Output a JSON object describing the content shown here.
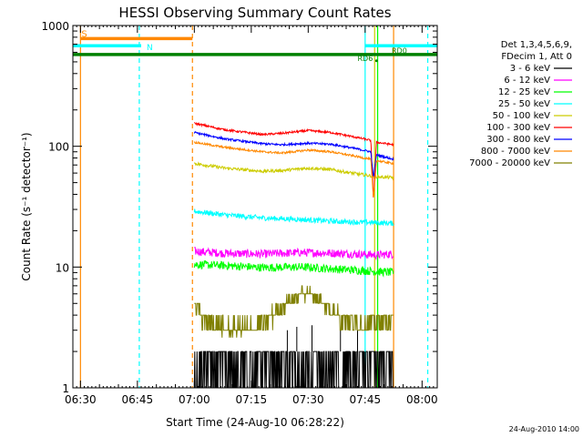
{
  "chart_data": {
    "type": "line",
    "title": "HESSI Observing Summary Count Rates",
    "xlabel": "Start Time (24-Aug-10 06:28:22)",
    "ylabel": "Count Rate (s⁻¹ detector⁻¹)",
    "x_unit": "minutes after 06:28:22 UT",
    "xlim": [
      0,
      96
    ],
    "ylim": [
      1,
      1000
    ],
    "yscale": "log",
    "x_ticks": [
      {
        "value": 2,
        "label": "06:30"
      },
      {
        "value": 17,
        "label": "06:45"
      },
      {
        "value": 32,
        "label": "07:00"
      },
      {
        "value": 47,
        "label": "07:15"
      },
      {
        "value": 62,
        "label": "07:30"
      },
      {
        "value": 77,
        "label": "07:45"
      },
      {
        "value": 92,
        "label": "08:00"
      }
    ],
    "y_ticks": [
      {
        "value": 1,
        "label": "1"
      },
      {
        "value": 10,
        "label": "10"
      },
      {
        "value": 100,
        "label": "100"
      },
      {
        "value": 1000,
        "label": "1000"
      }
    ],
    "legend": {
      "position": "right",
      "header": [
        "Det 1,3,4,5,6,9,",
        "FDecim 1, Att 0"
      ]
    },
    "series": [
      {
        "name": "3 - 6 keV",
        "color": "#000000",
        "noise": 0.35,
        "min": 1,
        "max": 2.0,
        "x": [
          32,
          35,
          40,
          45,
          50,
          55,
          60,
          65,
          70,
          75,
          80,
          84.5
        ],
        "y": [
          1.4,
          1.3,
          1.3,
          1.3,
          1.3,
          1.4,
          1.6,
          1.6,
          1.5,
          1.4,
          1.4,
          1.4
        ],
        "spikes": [
          {
            "x": 56.5,
            "y": 3.0
          },
          {
            "x": 59,
            "y": 3.2
          },
          {
            "x": 63,
            "y": 3.3
          },
          {
            "x": 70.5,
            "y": 3.0
          },
          {
            "x": 75,
            "y": 3.0
          }
        ]
      },
      {
        "name": "6 - 12 keV",
        "color": "#ff00ff",
        "noise": 0.08,
        "x": [
          32,
          40,
          50,
          60,
          70,
          80,
          84.5
        ],
        "y": [
          13.5,
          13,
          12.8,
          13.2,
          13,
          12.6,
          12.8
        ]
      },
      {
        "name": "12 - 25 keV",
        "color": "#00ff00",
        "noise": 0.08,
        "x": [
          32,
          40,
          50,
          60,
          70,
          75,
          80,
          84.5
        ],
        "y": [
          10.5,
          10.3,
          9.9,
          10,
          9.6,
          9.4,
          9.2,
          9.0
        ]
      },
      {
        "name": "25 - 50 keV",
        "color": "#00ffff",
        "noise": 0.05,
        "x": [
          32,
          40,
          50,
          60,
          70,
          80,
          84.5
        ],
        "y": [
          29,
          27,
          25.5,
          24.8,
          23.8,
          23.3,
          23.0
        ]
      },
      {
        "name": "50 - 100 keV",
        "color": "#cccc00",
        "noise": 0.03,
        "x": [
          32,
          40,
          50,
          55,
          62,
          68,
          75,
          80,
          84.5
        ],
        "y": [
          72,
          66,
          62,
          63,
          66,
          64,
          59,
          56,
          55
        ]
      },
      {
        "name": "100 - 300 keV",
        "color": "#ff0000",
        "noise": 0.02,
        "x": [
          32,
          40,
          50,
          55,
          62,
          68,
          75,
          78.5,
          79.2,
          80,
          84.5
        ],
        "y": [
          155,
          137,
          125,
          128,
          135,
          130,
          118,
          112,
          36,
          108,
          103
        ]
      },
      {
        "name": "300 - 800 keV",
        "color": "#0000ff",
        "noise": 0.02,
        "x": [
          32,
          40,
          50,
          55,
          62,
          68,
          75,
          78.5,
          79.2,
          80,
          84.5
        ],
        "y": [
          130,
          115,
          105,
          103,
          106,
          104,
          95,
          90,
          55,
          85,
          78
        ]
      },
      {
        "name": "800 - 7000 keV",
        "color": "#ff8800",
        "noise": 0.02,
        "x": [
          32,
          40,
          50,
          55,
          62,
          68,
          75,
          78.5,
          79.2,
          80,
          84.5
        ],
        "y": [
          108,
          98,
          90,
          88,
          93,
          90,
          82,
          78,
          36,
          76,
          72
        ]
      },
      {
        "name": "7000 - 20000 keV",
        "color": "#808000",
        "noise": 0.05,
        "x": [
          32,
          33,
          35,
          40,
          45,
          50,
          55,
          60,
          62,
          65,
          70,
          75,
          77,
          80,
          84.5
        ],
        "y": [
          5.0,
          4.4,
          3.6,
          3.0,
          3.0,
          3.4,
          4.6,
          6.0,
          6.2,
          5.4,
          4.0,
          3.4,
          3.2,
          3.6,
          3.6
        ]
      }
    ],
    "annotations": [
      {
        "kind": "bar",
        "label": "S",
        "color": "#ff8800",
        "x0": 2,
        "x1": 31.5,
        "y": 780,
        "label_at": "start"
      },
      {
        "kind": "bar",
        "label": "N",
        "color": "#00ffff",
        "x0": 0,
        "x1": 18,
        "y": 680,
        "label_at": "end"
      },
      {
        "kind": "bar",
        "label": "N",
        "color": "#00ffff",
        "x0": 77,
        "x1": 96,
        "y": 680,
        "label_at": "none"
      },
      {
        "kind": "bar",
        "label": "",
        "color": "#008000",
        "x0": 0,
        "x1": 96,
        "y": 575,
        "label_at": "none"
      },
      {
        "kind": "text",
        "label": "RD0",
        "color": "#008000",
        "x": 84,
        "y": 590
      },
      {
        "kind": "text",
        "label": "RD6",
        "color": "#008000",
        "x": 75,
        "y": 510
      },
      {
        "kind": "dot",
        "label": "",
        "color": "#008000",
        "x": 80,
        "y": 510
      }
    ],
    "vlines": [
      {
        "x": 2,
        "color": "#ff8800",
        "style": "solid"
      },
      {
        "x": 31.5,
        "color": "#ff8800",
        "style": "dashed"
      },
      {
        "x": 17.5,
        "color": "#00ffff",
        "style": "dashed"
      },
      {
        "x": 93.5,
        "color": "#00ffff",
        "style": "dashed"
      },
      {
        "x": 77,
        "color": "#00ffff",
        "style": "solid"
      },
      {
        "x": 80.3,
        "color": "#00ff00",
        "style": "solid"
      },
      {
        "x": 79.5,
        "color": "#cccc00",
        "style": "solid"
      },
      {
        "x": 84.5,
        "color": "#ff8800",
        "style": "solid"
      }
    ],
    "footer": "24-Aug-2010 14:00",
    "grid": false
  }
}
